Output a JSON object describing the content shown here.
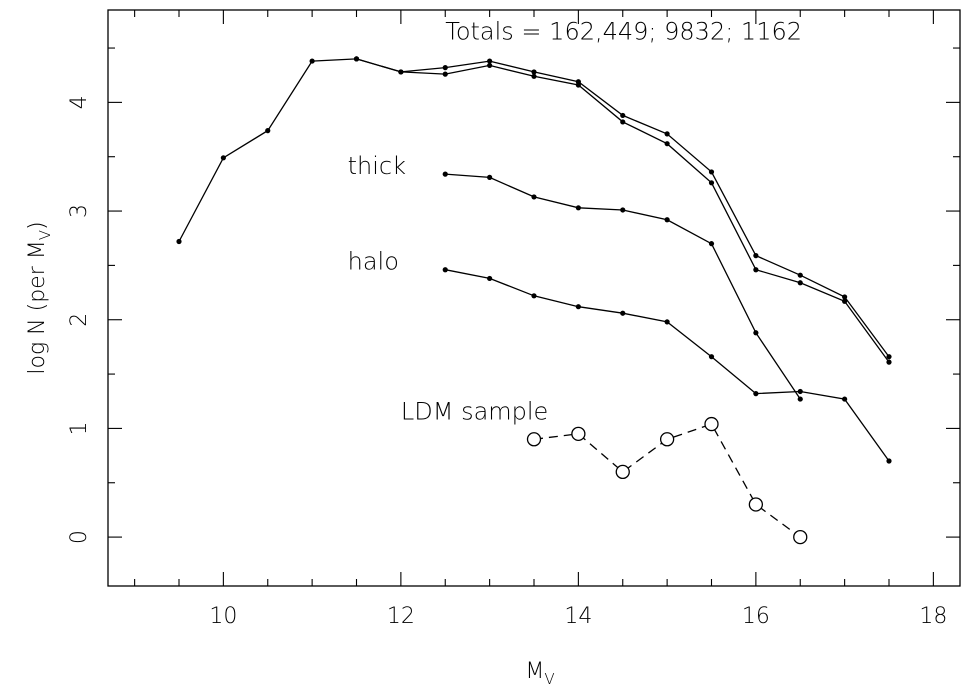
{
  "chart_data": {
    "type": "line",
    "xlabel_main": "M",
    "xlabel_sub": "V",
    "ylabel_main": "log N (per M",
    "ylabel_sub": "V",
    "ylabel_end": ")",
    "xlim": [
      8.7,
      18.3
    ],
    "ylim": [
      -0.45,
      4.85
    ],
    "x_ticks": [
      10,
      12,
      14,
      16,
      18
    ],
    "y_ticks": [
      0,
      1,
      2,
      3,
      4
    ],
    "x_minor_step": 0.5,
    "y_minor_step": 0.5,
    "annotations": [
      {
        "text": "Totals = 162,449; 9832; 1162",
        "x": 12.5,
        "y": 4.58
      },
      {
        "text": "thick",
        "x": 11.4,
        "y": 3.34
      },
      {
        "text": "halo",
        "x": 11.4,
        "y": 2.46
      },
      {
        "text": "LDM sample",
        "x": 12.0,
        "y": 1.08
      }
    ],
    "series": [
      {
        "marker": "dot",
        "style": "solid",
        "x": [
          9.5,
          10,
          10.5,
          11,
          11.5,
          12,
          12.5,
          13,
          13.5,
          14,
          14.5,
          15,
          15.5,
          16,
          16.5,
          17,
          17.5
        ],
        "values": [
          2.72,
          3.49,
          3.74,
          4.38,
          4.4,
          4.28,
          4.32,
          4.38,
          4.28,
          4.19,
          3.88,
          3.71,
          3.36,
          2.59,
          2.41,
          2.21,
          1.66
        ]
      },
      {
        "marker": "dot",
        "style": "solid",
        "x": [
          11.5,
          12,
          12.5,
          13,
          13.5,
          14,
          14.5,
          15,
          15.5,
          16,
          16.5,
          17,
          17.5
        ],
        "values": [
          4.4,
          4.28,
          4.26,
          4.34,
          4.24,
          4.16,
          3.82,
          3.62,
          3.26,
          2.46,
          2.34,
          2.17,
          1.61
        ]
      },
      {
        "marker": "dot",
        "style": "solid",
        "x": [
          12.5,
          13,
          13.5,
          14,
          14.5,
          15,
          15.5,
          16,
          16.5
        ],
        "values": [
          3.34,
          3.31,
          3.13,
          3.03,
          3.01,
          2.92,
          2.7,
          1.88,
          1.27
        ]
      },
      {
        "marker": "dot",
        "style": "solid",
        "x": [
          12.5,
          13,
          13.5,
          14,
          14.5,
          15,
          15.5,
          16,
          16.5,
          17,
          17.5
        ],
        "values": [
          2.46,
          2.38,
          2.22,
          2.12,
          2.06,
          1.98,
          1.66,
          1.32,
          1.34,
          1.27,
          0.7
        ]
      },
      {
        "marker": "open-circle",
        "style": "dashed",
        "x": [
          13.5,
          14,
          14.5,
          15,
          15.5,
          16,
          16.5
        ],
        "values": [
          0.9,
          0.95,
          0.6,
          0.9,
          1.04,
          0.3,
          0.0
        ]
      }
    ]
  }
}
